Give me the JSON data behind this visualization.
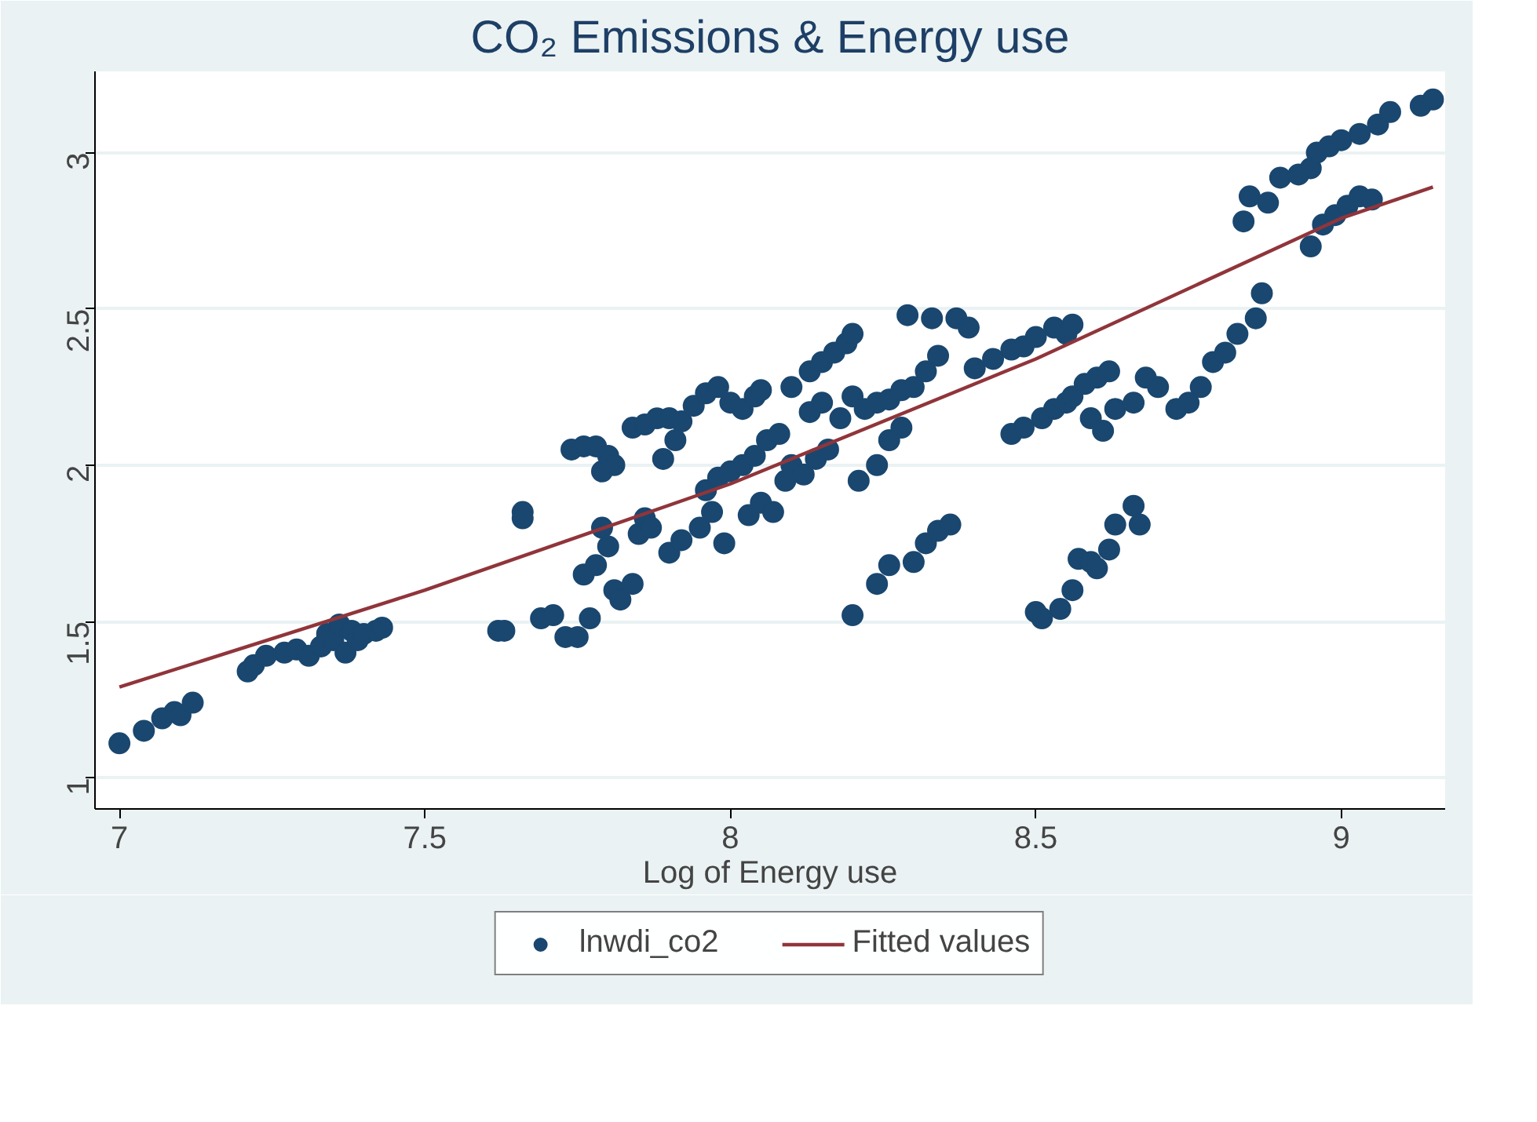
{
  "chart_data": {
    "type": "scatter",
    "title": "CO₂ Emissions & Energy use",
    "xlabel": "Log of Energy use",
    "xlim": [
      6.96,
      9.17
    ],
    "ylim": [
      0.9,
      3.26
    ],
    "xticks": [
      7,
      7.5,
      8,
      8.5,
      9
    ],
    "yticks": [
      1,
      1.5,
      2,
      2.5,
      3
    ],
    "grid": "y",
    "legend": "bottom",
    "marker": "circle",
    "series": [
      {
        "name": "lnwdi_co2",
        "type": "scatter",
        "color": "#1a476f",
        "x": [
          7.0,
          7.04,
          7.07,
          7.09,
          7.1,
          7.12,
          7.21,
          7.22,
          7.24,
          7.27,
          7.29,
          7.31,
          7.33,
          7.34,
          7.35,
          7.36,
          7.37,
          7.38,
          7.39,
          7.4,
          7.42,
          7.43,
          7.62,
          7.63,
          7.66,
          7.66,
          7.69,
          7.71,
          7.73,
          7.75,
          7.77,
          7.74,
          7.76,
          7.78,
          7.79,
          7.8,
          7.81,
          7.76,
          7.78,
          7.79,
          7.8,
          7.81,
          7.82,
          7.84,
          7.85,
          7.86,
          7.87,
          7.84,
          7.86,
          7.88,
          7.9,
          7.92,
          7.94,
          7.96,
          7.98,
          7.89,
          7.91,
          7.9,
          7.92,
          7.95,
          7.97,
          7.99,
          7.96,
          7.98,
          8.0,
          8.02,
          8.04,
          8.06,
          8.08,
          8.0,
          8.02,
          8.04,
          8.05,
          8.03,
          8.05,
          8.07,
          8.09,
          8.1,
          8.12,
          8.14,
          8.16,
          8.1,
          8.13,
          8.15,
          8.17,
          8.19,
          8.2,
          8.13,
          8.15,
          8.18,
          8.2,
          8.22,
          8.24,
          8.26,
          8.28,
          8.3,
          8.32,
          8.29,
          8.33,
          8.34,
          8.37,
          8.39,
          8.26,
          8.28,
          8.24,
          8.21,
          8.2,
          8.24,
          8.26,
          8.3,
          8.32,
          8.34,
          8.36,
          8.4,
          8.43,
          8.46,
          8.48,
          8.5,
          8.53,
          8.55,
          8.56,
          8.46,
          8.48,
          8.51,
          8.53,
          8.55,
          8.56,
          8.58,
          8.6,
          8.62,
          8.59,
          8.61,
          8.63,
          8.66,
          8.68,
          8.7,
          8.73,
          8.75,
          8.77,
          8.79,
          8.81,
          8.83,
          8.86,
          8.87,
          8.5,
          8.51,
          8.54,
          8.56,
          8.57,
          8.59,
          8.6,
          8.62,
          8.63,
          8.66,
          8.67,
          8.84,
          8.85,
          8.88,
          8.9,
          8.93,
          8.95,
          8.96,
          8.98,
          9.0,
          9.03,
          9.06,
          9.08,
          9.13,
          9.15,
          8.95,
          8.97,
          8.99,
          9.01,
          9.03,
          9.05
        ],
        "values": [
          1.11,
          1.15,
          1.19,
          1.21,
          1.2,
          1.24,
          1.34,
          1.36,
          1.39,
          1.4,
          1.41,
          1.39,
          1.42,
          1.46,
          1.44,
          1.49,
          1.4,
          1.47,
          1.44,
          1.46,
          1.47,
          1.48,
          1.47,
          1.47,
          1.85,
          1.83,
          1.51,
          1.52,
          1.45,
          1.45,
          1.51,
          2.05,
          2.06,
          2.06,
          1.98,
          2.03,
          2.0,
          1.65,
          1.68,
          1.8,
          1.74,
          1.6,
          1.57,
          1.62,
          1.78,
          1.83,
          1.8,
          2.12,
          2.13,
          2.15,
          2.15,
          2.14,
          2.19,
          2.23,
          2.25,
          2.02,
          2.08,
          1.72,
          1.76,
          1.8,
          1.85,
          1.75,
          1.92,
          1.96,
          1.98,
          2.0,
          2.03,
          2.08,
          2.1,
          2.2,
          2.18,
          2.22,
          2.24,
          1.84,
          1.88,
          1.85,
          1.95,
          2.0,
          1.97,
          2.02,
          2.05,
          2.25,
          2.3,
          2.33,
          2.36,
          2.39,
          2.42,
          2.17,
          2.2,
          2.15,
          2.22,
          2.18,
          2.2,
          2.21,
          2.24,
          2.25,
          2.3,
          2.48,
          2.47,
          2.35,
          2.47,
          2.44,
          2.08,
          2.12,
          2.0,
          1.95,
          1.52,
          1.62,
          1.68,
          1.69,
          1.75,
          1.79,
          1.81,
          2.31,
          2.34,
          2.37,
          2.38,
          2.41,
          2.44,
          2.42,
          2.45,
          2.1,
          2.12,
          2.15,
          2.18,
          2.2,
          2.22,
          2.26,
          2.28,
          2.3,
          2.15,
          2.11,
          2.18,
          2.2,
          2.28,
          2.25,
          2.18,
          2.2,
          2.25,
          2.33,
          2.36,
          2.42,
          2.47,
          2.55,
          1.53,
          1.51,
          1.54,
          1.6,
          1.7,
          1.69,
          1.67,
          1.73,
          1.81,
          1.87,
          1.81,
          2.78,
          2.86,
          2.84,
          2.92,
          2.93,
          2.95,
          3.0,
          3.02,
          3.04,
          3.06,
          3.09,
          3.13,
          3.15,
          3.17,
          2.7,
          2.77,
          2.8,
          2.83,
          2.86,
          2.85
        ]
      },
      {
        "name": "Fitted values",
        "type": "line",
        "color": "#90353b",
        "marker": "none",
        "x": [
          7.0,
          7.5,
          8.0,
          8.5,
          9.0,
          9.15
        ],
        "values": [
          1.29,
          1.6,
          1.94,
          2.34,
          2.79,
          2.89
        ]
      }
    ]
  }
}
